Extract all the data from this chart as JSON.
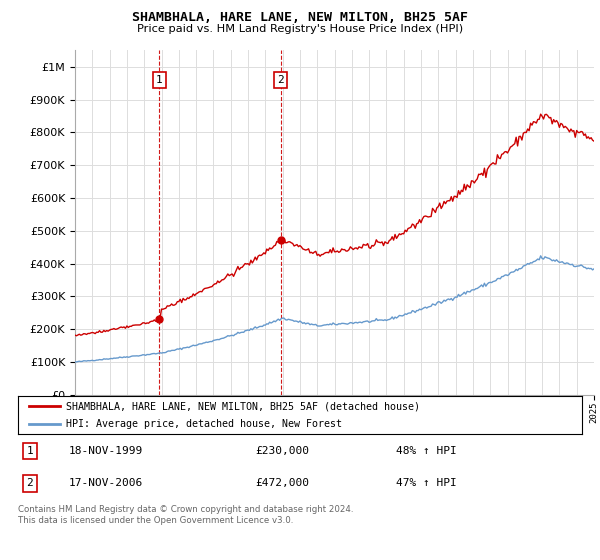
{
  "title": "SHAMBHALA, HARE LANE, NEW MILTON, BH25 5AF",
  "subtitle": "Price paid vs. HM Land Registry's House Price Index (HPI)",
  "legend_entry1": "SHAMBHALA, HARE LANE, NEW MILTON, BH25 5AF (detached house)",
  "legend_entry2": "HPI: Average price, detached house, New Forest",
  "transaction1_label": "1",
  "transaction1_date": "18-NOV-1999",
  "transaction1_price": "£230,000",
  "transaction1_hpi": "48% ↑ HPI",
  "transaction1_year": 1999.88,
  "transaction1_value": 230000,
  "transaction2_label": "2",
  "transaction2_date": "17-NOV-2006",
  "transaction2_price": "£472,000",
  "transaction2_hpi": "47% ↑ HPI",
  "transaction2_year": 2006.88,
  "transaction2_value": 472000,
  "red_line_color": "#cc0000",
  "blue_line_color": "#6699cc",
  "background_color": "#ffffff",
  "grid_color": "#dddddd",
  "ylim_min": 0,
  "ylim_max": 1050000,
  "footnote": "Contains HM Land Registry data © Crown copyright and database right 2024.\nThis data is licensed under the Open Government Licence v3.0."
}
